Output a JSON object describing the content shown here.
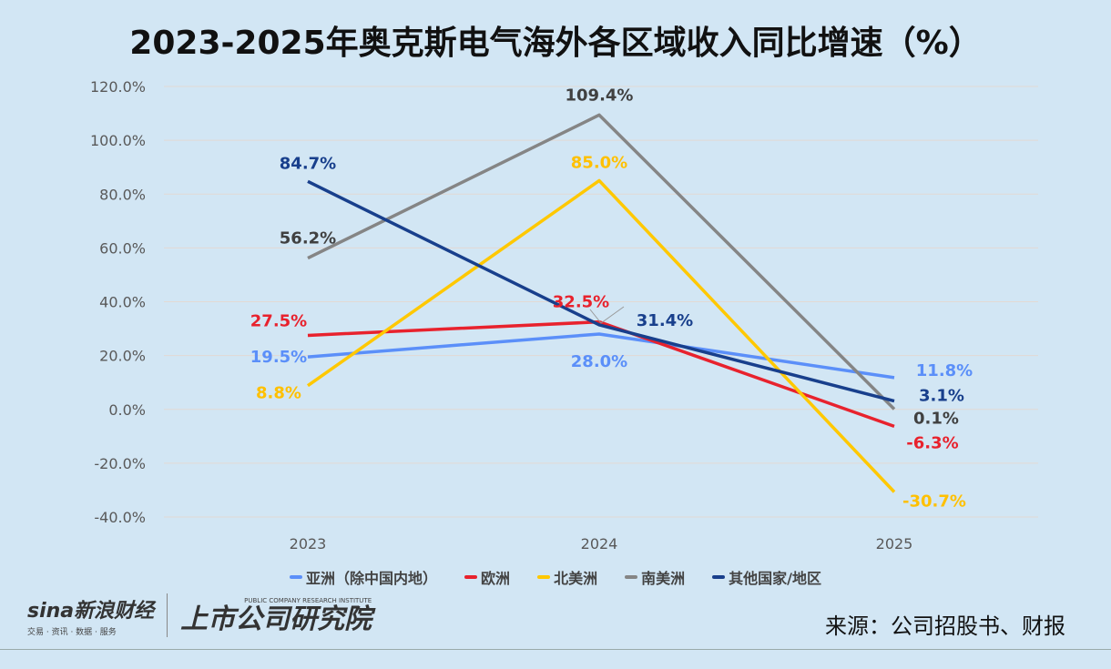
{
  "chart_data": {
    "type": "line",
    "title": "2023-2025年奥克斯电气海外各区域收入同比增速（%）",
    "categories": [
      "2023",
      "2024",
      "2025"
    ],
    "ylim": [
      -40,
      120
    ],
    "yticks": [
      "-40.0%",
      "-20.0%",
      "0.0%",
      "20.0%",
      "40.0%",
      "60.0%",
      "80.0%",
      "100.0%",
      "120.0%"
    ],
    "grid": true,
    "legend_position": "bottom",
    "series": [
      {
        "name": "亚洲（除中国内地）",
        "color": "#5b8ff9",
        "label_color": "#5b8ff9",
        "values": [
          19.5,
          28.0,
          11.8
        ],
        "labels": [
          "19.5%",
          "28.0%",
          "11.8%"
        ]
      },
      {
        "name": "欧洲",
        "color": "#e8222d",
        "label_color": "#e8222d",
        "values": [
          27.5,
          32.5,
          -6.3
        ],
        "labels": [
          "27.5%",
          "32.5%",
          "-6.3%"
        ]
      },
      {
        "name": "北美洲",
        "color": "#ffc800",
        "label_color": "#ffc000",
        "values": [
          8.8,
          85.0,
          -30.7
        ],
        "labels": [
          "8.8%",
          "85.0%",
          "-30.7%"
        ]
      },
      {
        "name": "南美洲",
        "color": "#858585",
        "label_color": "#404040",
        "values": [
          56.2,
          109.4,
          0.1
        ],
        "labels": [
          "56.2%",
          "109.4%",
          "0.1%"
        ]
      },
      {
        "name": "其他国家/地区",
        "color": "#183f8c",
        "label_color": "#183f8c",
        "values": [
          84.7,
          31.4,
          3.1
        ],
        "labels": [
          "84.7%",
          "31.4%",
          "3.1%"
        ]
      }
    ]
  },
  "footer": {
    "source": "来源：公司招股书、财报",
    "logo_sina": "sina新浪财经",
    "logo_sina_sub": "交易 · 资讯 · 数据 · 服务",
    "logo_institute": "上市公司研究院",
    "logo_institute_en": "PUBLIC COMPANY RESEARCH INSTITUTE"
  }
}
